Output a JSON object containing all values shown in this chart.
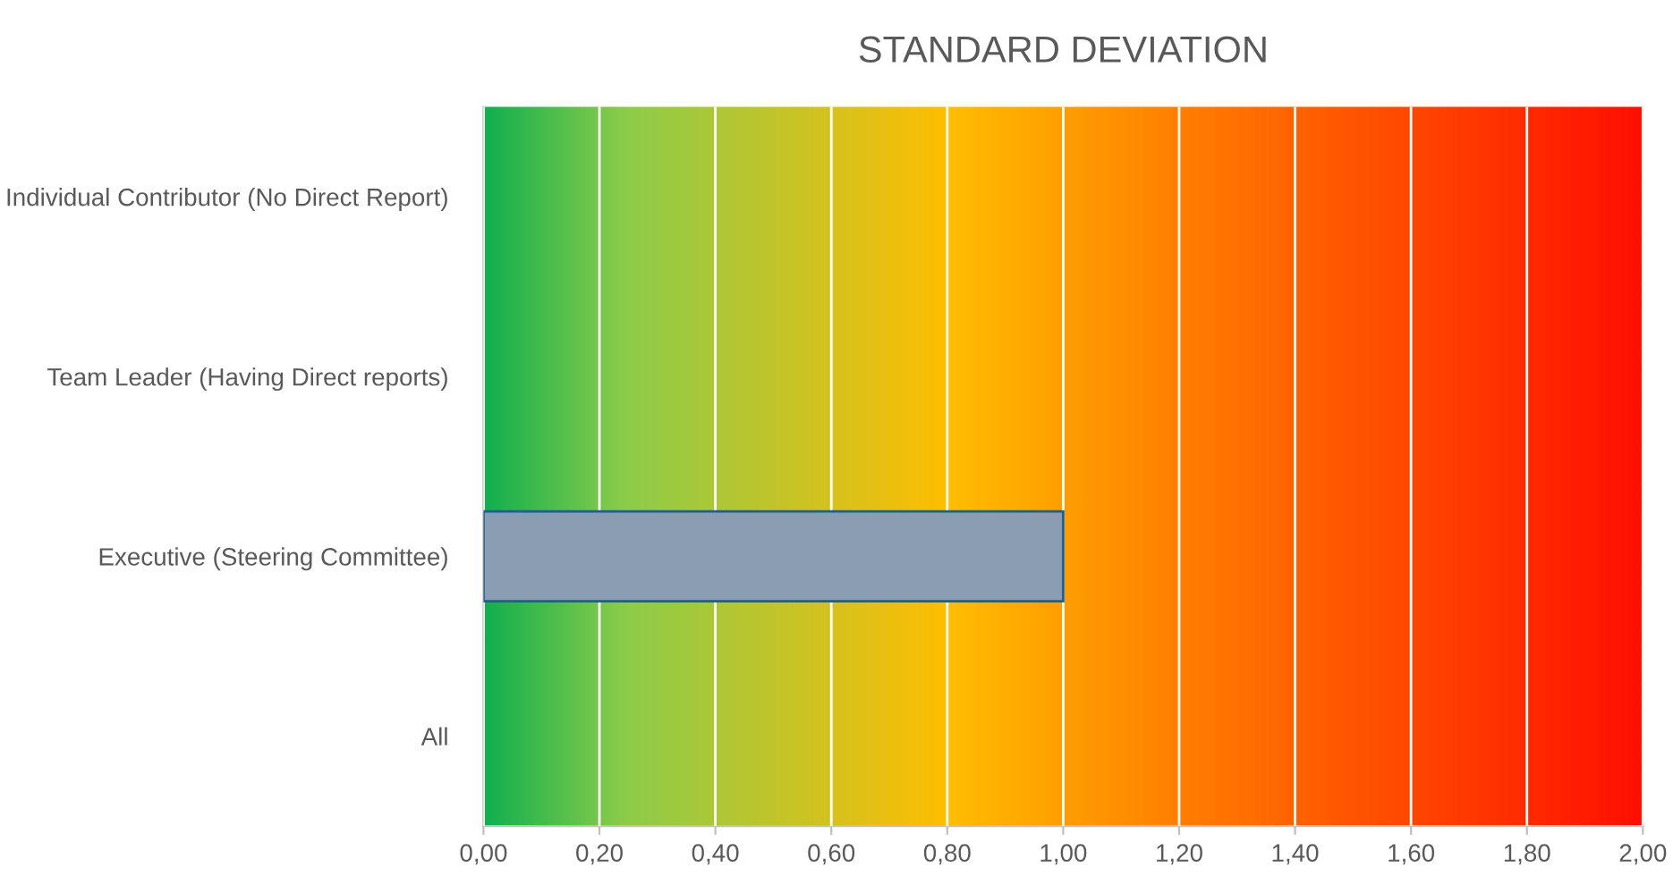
{
  "chart_data": {
    "type": "bar",
    "orientation": "horizontal",
    "title": "STANDARD DEVIATION",
    "categories": [
      "Individual Contributor (No Direct Report)",
      "Team Leader (Having Direct reports)",
      "Executive (Steering Committee)",
      "All"
    ],
    "values": [
      null,
      null,
      1.0,
      null
    ],
    "color": "#8a9db3",
    "xlim": [
      0,
      2
    ],
    "xticks": [
      {
        "value": 0,
        "label": "0,00"
      },
      {
        "value": 0.2,
        "label": "0,20"
      },
      {
        "value": 0.4,
        "label": "0,40"
      },
      {
        "value": 0.6,
        "label": "0,60"
      },
      {
        "value": 0.8,
        "label": "0,80"
      },
      {
        "value": 1.0,
        "label": "1,00"
      },
      {
        "value": 1.2,
        "label": "1,20"
      },
      {
        "value": 1.4,
        "label": "1,40"
      },
      {
        "value": 1.6,
        "label": "1,60"
      },
      {
        "value": 1.8,
        "label": "1,80"
      },
      {
        "value": 2.0,
        "label": "2,00"
      }
    ],
    "grid": "x",
    "legend": false
  }
}
